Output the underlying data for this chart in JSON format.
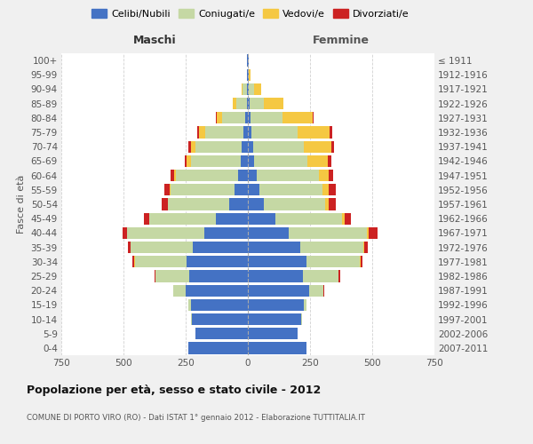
{
  "age_groups": [
    "0-4",
    "5-9",
    "10-14",
    "15-19",
    "20-24",
    "25-29",
    "30-34",
    "35-39",
    "40-44",
    "45-49",
    "50-54",
    "55-59",
    "60-64",
    "65-69",
    "70-74",
    "75-79",
    "80-84",
    "85-89",
    "90-94",
    "95-99",
    "100+"
  ],
  "birth_years": [
    "2007-2011",
    "2002-2006",
    "1997-2001",
    "1992-1996",
    "1987-1991",
    "1982-1986",
    "1977-1981",
    "1972-1976",
    "1967-1971",
    "1962-1966",
    "1957-1961",
    "1952-1956",
    "1947-1951",
    "1942-1946",
    "1937-1941",
    "1932-1936",
    "1927-1931",
    "1922-1926",
    "1917-1921",
    "1912-1916",
    "≤ 1911"
  ],
  "maschi": {
    "celibe": [
      240,
      210,
      225,
      230,
      250,
      235,
      245,
      220,
      175,
      130,
      75,
      55,
      40,
      30,
      25,
      18,
      10,
      5,
      5,
      2,
      2
    ],
    "coniugato": [
      0,
      1,
      2,
      10,
      50,
      135,
      210,
      250,
      310,
      265,
      245,
      255,
      250,
      200,
      185,
      155,
      95,
      40,
      15,
      2,
      0
    ],
    "vedovo": [
      0,
      0,
      0,
      0,
      0,
      1,
      1,
      1,
      2,
      2,
      3,
      5,
      8,
      15,
      20,
      25,
      20,
      15,
      5,
      0,
      0
    ],
    "divorziato": [
      0,
      0,
      0,
      0,
      1,
      3,
      8,
      12,
      15,
      20,
      22,
      20,
      12,
      10,
      8,
      5,
      3,
      1,
      0,
      0,
      0
    ]
  },
  "femmine": {
    "nubile": [
      235,
      200,
      215,
      225,
      245,
      220,
      235,
      210,
      165,
      110,
      65,
      45,
      35,
      25,
      20,
      15,
      10,
      8,
      5,
      2,
      2
    ],
    "coniugata": [
      0,
      1,
      3,
      12,
      60,
      145,
      215,
      255,
      315,
      270,
      245,
      255,
      250,
      215,
      205,
      185,
      130,
      55,
      20,
      2,
      0
    ],
    "vedova": [
      0,
      0,
      0,
      0,
      0,
      1,
      2,
      3,
      5,
      8,
      15,
      25,
      40,
      80,
      110,
      130,
      120,
      80,
      30,
      5,
      0
    ],
    "divorziata": [
      0,
      0,
      0,
      0,
      1,
      5,
      10,
      15,
      35,
      25,
      30,
      28,
      18,
      15,
      12,
      10,
      5,
      1,
      0,
      0,
      0
    ]
  },
  "colors": {
    "celibe": "#4472C4",
    "coniugato": "#C5D8A4",
    "vedovo": "#F5C842",
    "divorziato": "#CC2222"
  },
  "legend_labels": [
    "Celibi/Nubili",
    "Coniugati/e",
    "Vedovi/e",
    "Divorziati/e"
  ],
  "title": "Popolazione per età, sesso e stato civile - 2012",
  "subtitle": "COMUNE DI PORTO VIRO (RO) - Dati ISTAT 1° gennaio 2012 - Elaborazione TUTTITALIA.IT",
  "xlabel_left": "Maschi",
  "xlabel_right": "Femmine",
  "ylabel_left": "Fasce di età",
  "xlim": 750,
  "background_color": "#f0f0f0",
  "plot_background": "#ffffff",
  "grid_color": "#cccccc"
}
